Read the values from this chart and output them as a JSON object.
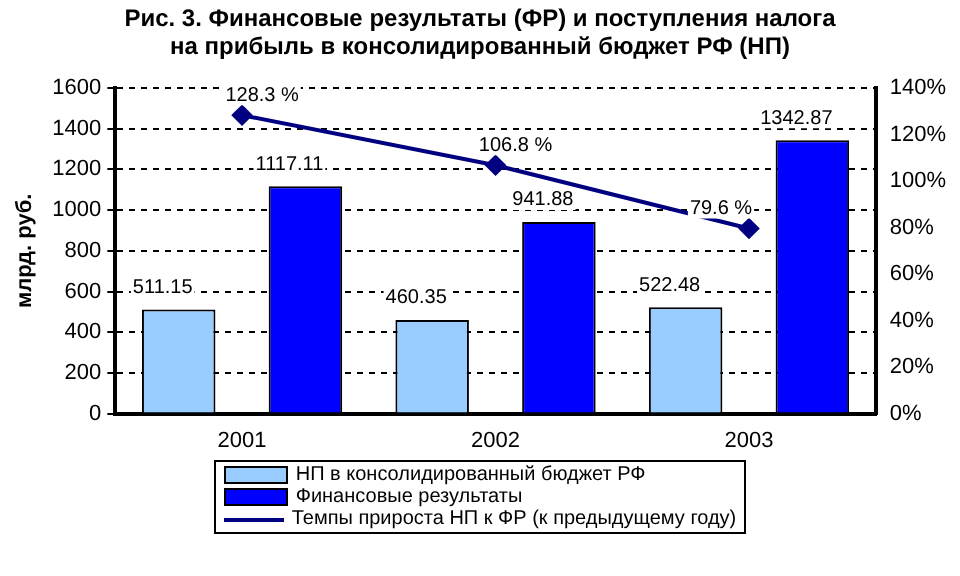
{
  "chart_data": {
    "type": "bar",
    "title": "Рис. 3. Финансовые результаты (ФР) и поступления налога на прибыль в консолидированный бюджет РФ (НП)",
    "ylabel": "млрд. руб.",
    "categories": [
      "2001",
      "2002",
      "2003"
    ],
    "series": [
      {
        "name": "НП в консолидированный бюджет РФ",
        "color": "#99ccff",
        "values": [
          511.15,
          460.35,
          522.48
        ]
      },
      {
        "name": "Финансовые результаты",
        "color": "#0000ff",
        "values": [
          1117.11,
          941.88,
          1342.87
        ]
      },
      {
        "name": "Темпы прироста НП к ФР (к предыдущему году)",
        "type": "line",
        "axis": "y2",
        "color": "#000080",
        "values": [
          128.3,
          106.8,
          79.6
        ],
        "value_labels": [
          "128.3 %",
          "106.8 %",
          "79.6 %"
        ]
      }
    ],
    "ylim": [
      0,
      1600
    ],
    "yticks": [
      0,
      200,
      400,
      600,
      800,
      1000,
      1200,
      1400,
      1600
    ],
    "y2lim": [
      0,
      140
    ],
    "y2ticks": [
      {
        "value": 0,
        "label": "0%"
      },
      {
        "value": 20,
        "label": "20%"
      },
      {
        "value": 40,
        "label": "40%"
      },
      {
        "value": 60,
        "label": "60%"
      },
      {
        "value": 80,
        "label": "80%"
      },
      {
        "value": 100,
        "label": "100%"
      },
      {
        "value": 120,
        "label": "120%"
      },
      {
        "value": 140,
        "label": "140%"
      }
    ],
    "grid": "y",
    "legend": "bottom",
    "marker": "diamond",
    "line_style": "solid",
    "data_labels": true
  }
}
